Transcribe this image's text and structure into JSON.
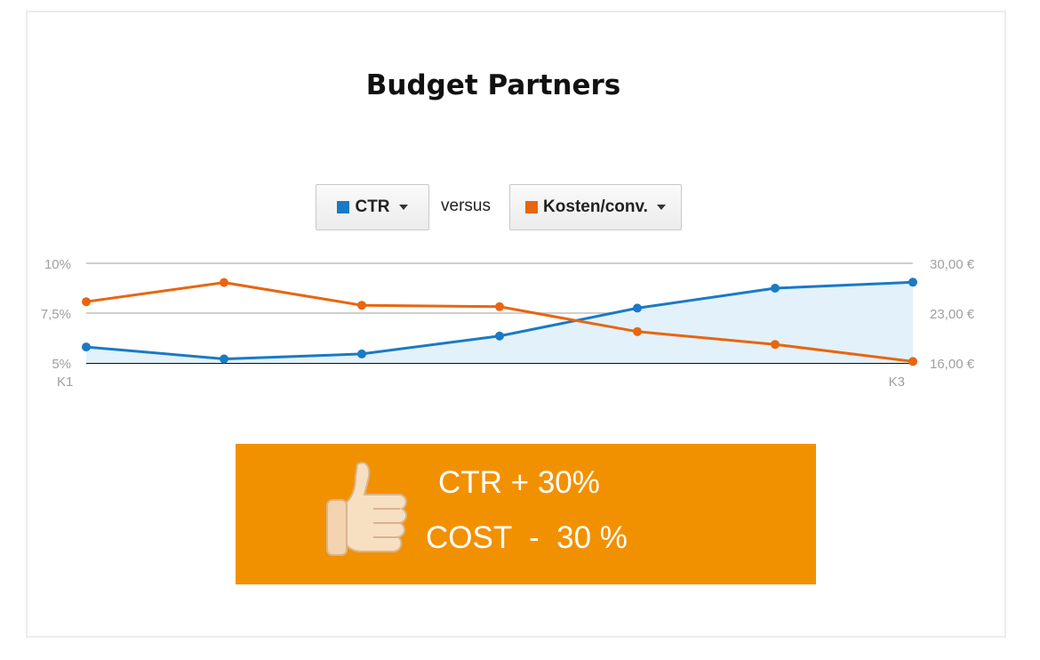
{
  "title": "Budget Partners",
  "controls": {
    "metric1": {
      "label": "CTR",
      "color": "#1a7ac4"
    },
    "connector": "versus",
    "metric2": {
      "label": "Kosten/conv.",
      "color": "#e8660f"
    }
  },
  "chart_data": {
    "type": "line",
    "x_start_label": "K1",
    "x_end_label": "K3",
    "left_axis": {
      "ticks": [
        "10%",
        "7,5%",
        "5%"
      ],
      "values": [
        10,
        7.5,
        5
      ],
      "ylim": [
        5,
        10
      ]
    },
    "right_axis": {
      "ticks": [
        "30,00 €",
        "23,00 €",
        "16,00 €"
      ],
      "values": [
        30,
        23,
        16
      ],
      "ylim": [
        16,
        30
      ]
    },
    "grid": true,
    "series": [
      {
        "name": "CTR",
        "axis": "left",
        "color": "#1a7ac4",
        "area": true,
        "values": [
          5.8,
          5.2,
          5.45,
          6.35,
          7.75,
          8.75,
          9.05
        ]
      },
      {
        "name": "Kosten/conv.",
        "axis": "right",
        "color": "#e8660f",
        "area": false,
        "values": [
          24.6,
          27.3,
          24.1,
          23.9,
          20.4,
          18.6,
          16.2
        ]
      }
    ]
  },
  "banner": {
    "line1": "CTR + 30%",
    "line2": "COST  -  30 %",
    "icon": "thumbs-up-icon",
    "background": "#f29100"
  }
}
